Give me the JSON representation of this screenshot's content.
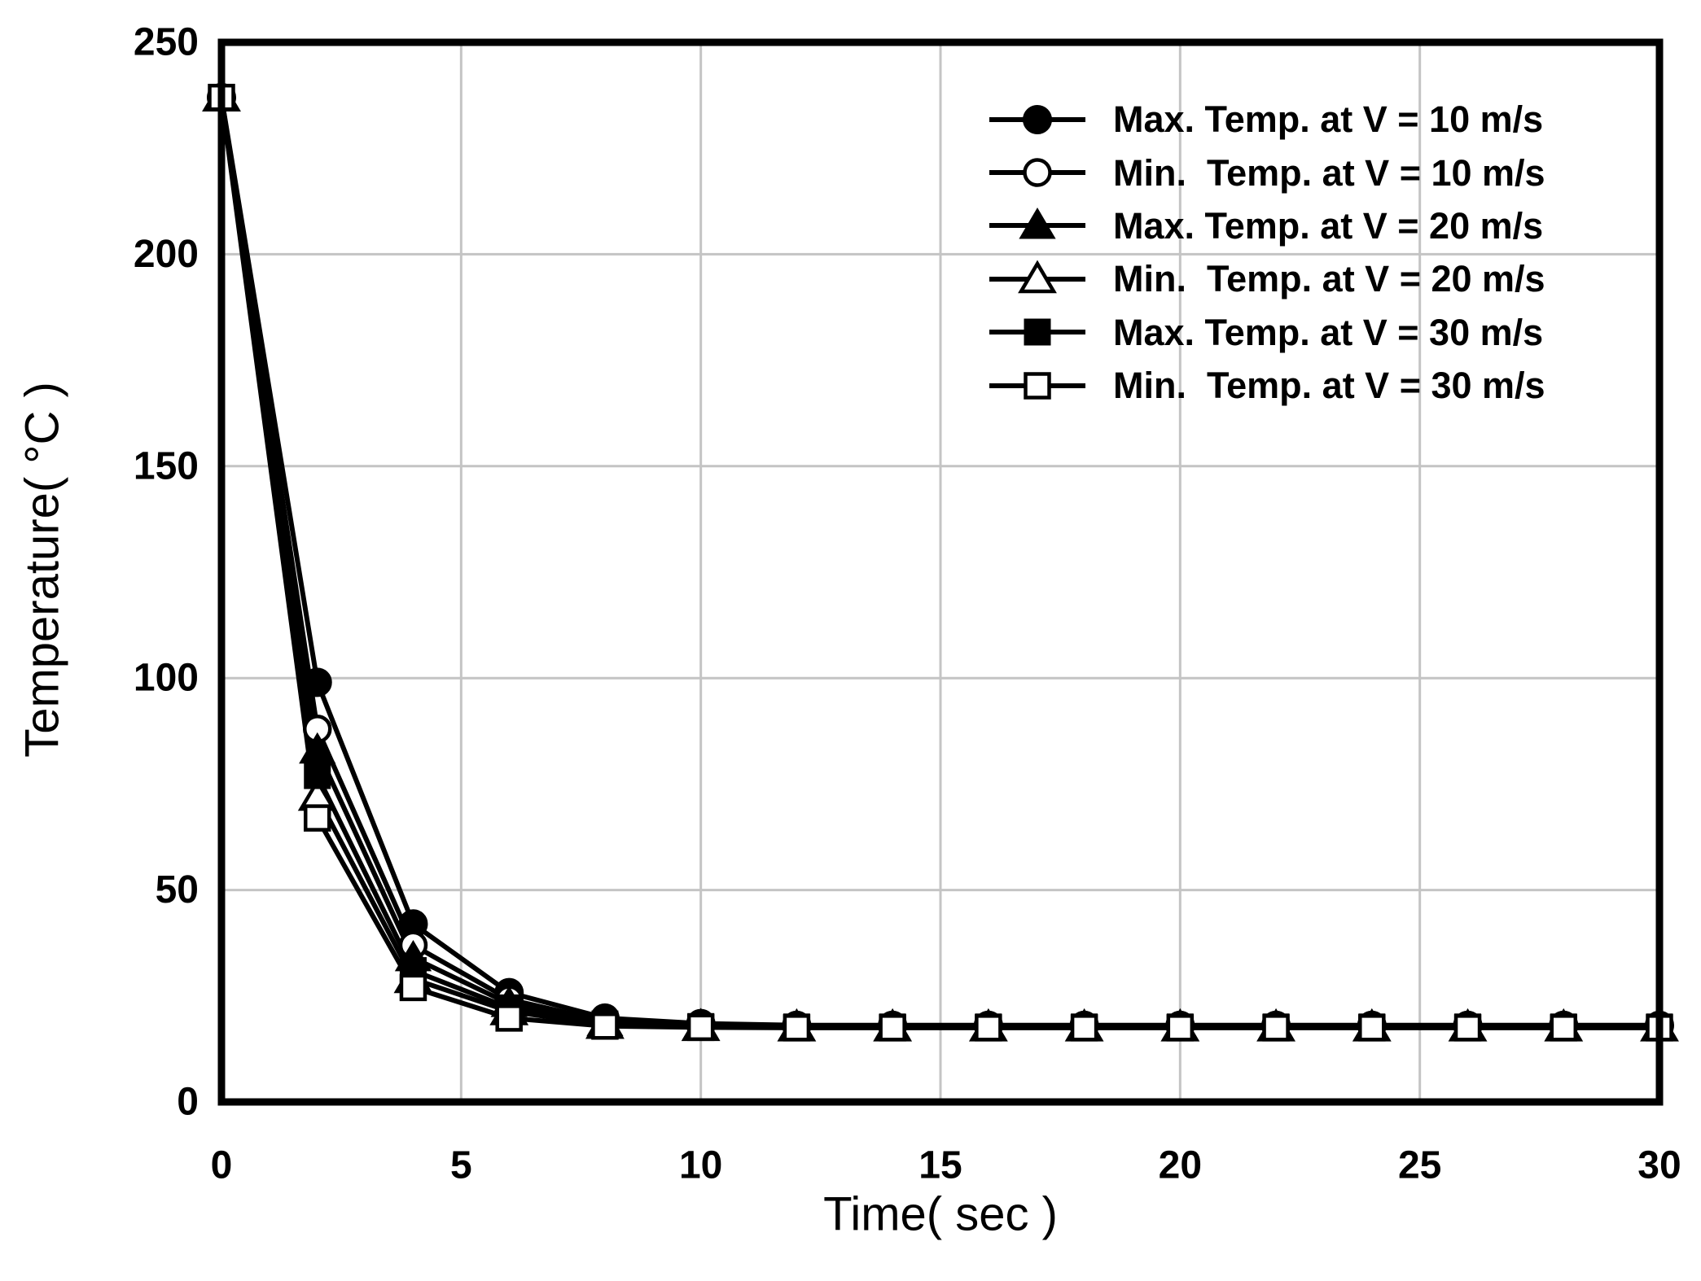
{
  "figure": {
    "background": "#ffffff",
    "ink_color": "#000000"
  },
  "chart_data": {
    "type": "line",
    "title": "",
    "xlabel": "Time( sec )",
    "ylabel": "Temperature( °C )",
    "xlim": [
      0,
      30
    ],
    "ylim": [
      0,
      250
    ],
    "xticks": [
      0,
      5,
      10,
      15,
      20,
      25,
      30
    ],
    "yticks": [
      0,
      50,
      100,
      150,
      200,
      250
    ],
    "grid": true,
    "grid_color": "#c4c4c4",
    "line_color": "#000000",
    "legend_position": "upper-right-inside",
    "x": [
      0,
      2,
      4,
      6,
      8,
      10,
      12,
      14,
      16,
      18,
      20,
      22,
      24,
      26,
      28,
      30
    ],
    "series": [
      {
        "name": "Max. Temp. at V = 10 m/s",
        "marker": "filled-circle",
        "values": [
          237,
          99,
          42,
          25.8,
          19.8,
          18.5,
          18.1,
          18.1,
          18.1,
          18.1,
          18.1,
          18.1,
          18.1,
          18.1,
          18.1,
          18.1
        ]
      },
      {
        "name": "Min.  Temp. at V = 10 m/s",
        "marker": "open-circle",
        "values": [
          237,
          88,
          37,
          24.2,
          19.0,
          18.1,
          17.9,
          17.9,
          17.9,
          17.9,
          17.9,
          17.9,
          17.9,
          17.9,
          17.9,
          17.9
        ]
      },
      {
        "name": "Max. Temp. at V = 20 m/s",
        "marker": "filled-triangle",
        "values": [
          237,
          83,
          34,
          23.2,
          18.7,
          17.9,
          17.8,
          17.8,
          17.8,
          17.8,
          17.8,
          17.8,
          17.8,
          17.8,
          17.8,
          17.8
        ]
      },
      {
        "name": "Min.  Temp. at V = 20 m/s",
        "marker": "open-triangle",
        "values": [
          237,
          72,
          29,
          21.4,
          18.2,
          17.7,
          17.6,
          17.6,
          17.6,
          17.6,
          17.6,
          17.6,
          17.6,
          17.6,
          17.6,
          17.6
        ]
      },
      {
        "name": "Max. Temp. at V = 30 m/s",
        "marker": "filled-square",
        "values": [
          237,
          77,
          31,
          22.2,
          18.4,
          17.8,
          17.7,
          17.7,
          17.7,
          17.7,
          17.7,
          17.7,
          17.7,
          17.7,
          17.7,
          17.7
        ]
      },
      {
        "name": "Min.  Temp. at V = 30 m/s",
        "marker": "open-square",
        "values": [
          237,
          67,
          27,
          19.8,
          17.9,
          17.6,
          17.5,
          17.5,
          17.5,
          17.5,
          17.5,
          17.5,
          17.5,
          17.5,
          17.5,
          17.5
        ]
      }
    ]
  }
}
